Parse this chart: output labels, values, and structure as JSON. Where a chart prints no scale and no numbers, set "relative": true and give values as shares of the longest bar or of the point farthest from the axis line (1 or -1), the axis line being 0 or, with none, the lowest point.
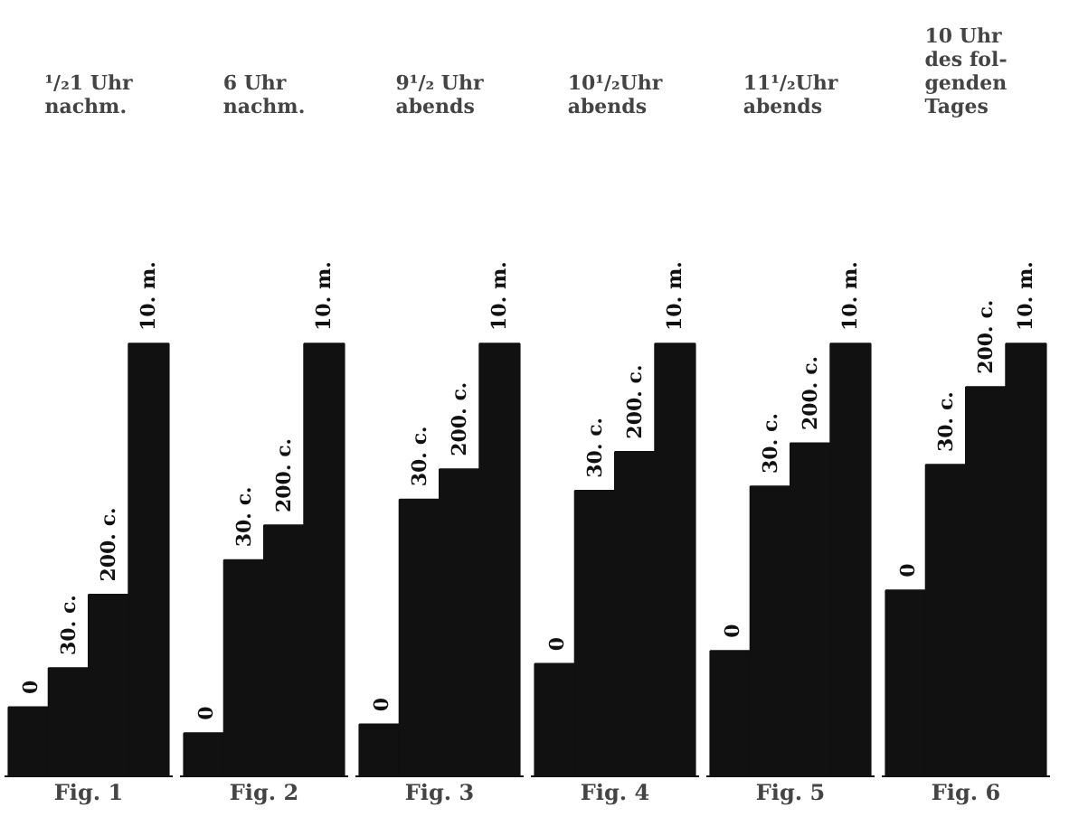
{
  "chart_data": [
    {
      "type": "bar",
      "relative": true,
      "title": "¹/₂1 Uhr\nnachm.",
      "xlabel": "Fig. 1",
      "categories": [
        "0",
        "30. c.",
        "200. c.",
        "10. m."
      ],
      "color": "#111111",
      "data_labels": false,
      "values": [
        0.16,
        0.25,
        0.42,
        1
      ]
    },
    {
      "type": "bar",
      "relative": true,
      "title": "6 Uhr\nnachm.",
      "xlabel": "Fig. 2",
      "categories": [
        "0",
        "30. c.",
        "200. c.",
        "10. m."
      ],
      "color": "#111111",
      "values": [
        0.1,
        0.5,
        0.58,
        1
      ]
    },
    {
      "type": "bar",
      "relative": true,
      "title": "9¹/₂ Uhr\nabends",
      "xlabel": "Fig. 3",
      "categories": [
        "0",
        "30. c.",
        "200. c.",
        "10. m."
      ],
      "color": "#111111",
      "values": [
        0.12,
        0.64,
        0.71,
        1
      ]
    },
    {
      "type": "bar",
      "relative": true,
      "title": "10¹/₂Uhr\nabends",
      "xlabel": "Fig. 4",
      "categories": [
        "0",
        "30. c.",
        "200. c.",
        "10. m."
      ],
      "color": "#111111",
      "values": [
        0.26,
        0.66,
        0.75,
        1
      ]
    },
    {
      "type": "bar",
      "relative": true,
      "title": "11¹/₂Uhr\nabends",
      "xlabel": "Fig. 5",
      "categories": [
        "0",
        "30. c.",
        "200. c.",
        "10. m."
      ],
      "color": "#111111",
      "values": [
        0.29,
        0.67,
        0.77,
        1
      ]
    },
    {
      "type": "bar",
      "relative": true,
      "title": "10 Uhr\ndes fol-\ngenden\nTages",
      "xlabel": "Fig. 6",
      "categories": [
        "0",
        "30. c.",
        "200. c.",
        "10. m."
      ],
      "color": "#111111",
      "values": [
        0.43,
        0.72,
        0.9,
        1
      ]
    }
  ]
}
